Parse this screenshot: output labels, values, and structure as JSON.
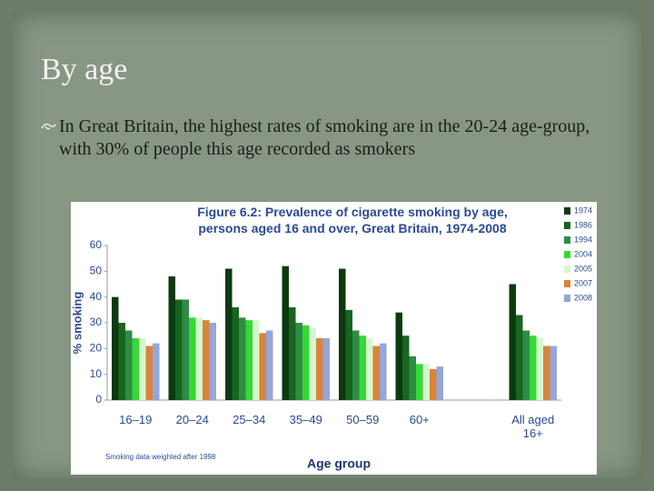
{
  "slide": {
    "title": "By age",
    "bullet": "In Great Britain, the highest rates of smoking are in the 20-24 age-group, with 30% of people this age recorded as smokers"
  },
  "chart_data": {
    "type": "bar",
    "title": "Figure 6.2: Prevalence of cigarette smoking by age, persons aged 16 and over, Great Britain, 1974-2008",
    "x_label": "Age group",
    "y_label": "% smoking",
    "note": "Smoking data weighted after 1998",
    "categories": [
      "16–19",
      "20–24",
      "25–34",
      "35–49",
      "50–59",
      "60+",
      null,
      "All aged 16+"
    ],
    "series": [
      {
        "name": "1974",
        "color": "#0b3a0f",
        "values": [
          40,
          48,
          51,
          52,
          51,
          34,
          null,
          45
        ]
      },
      {
        "name": "1986",
        "color": "#17661f",
        "values": [
          30,
          39,
          36,
          36,
          35,
          25,
          null,
          33
        ]
      },
      {
        "name": "1994",
        "color": "#2e8c45",
        "values": [
          27,
          39,
          32,
          30,
          27,
          17,
          null,
          27
        ]
      },
      {
        "name": "2004",
        "color": "#35d935",
        "values": [
          24,
          32,
          31,
          29,
          25,
          14,
          null,
          25
        ]
      },
      {
        "name": "2005",
        "color": "#d6f7d0",
        "values": [
          24,
          32,
          31,
          28,
          24,
          14,
          null,
          24
        ]
      },
      {
        "name": "2007",
        "color": "#d9843c",
        "values": [
          21,
          31,
          26,
          24,
          21,
          12,
          null,
          21
        ]
      },
      {
        "name": "2008",
        "color": "#95a6d8",
        "values": [
          22,
          30,
          27,
          24,
          22,
          13,
          null,
          21
        ]
      }
    ],
    "ylim": [
      0,
      60
    ],
    "yticks": [
      0,
      10,
      20,
      30,
      40,
      50,
      60
    ],
    "grid": false,
    "legend": "right"
  }
}
